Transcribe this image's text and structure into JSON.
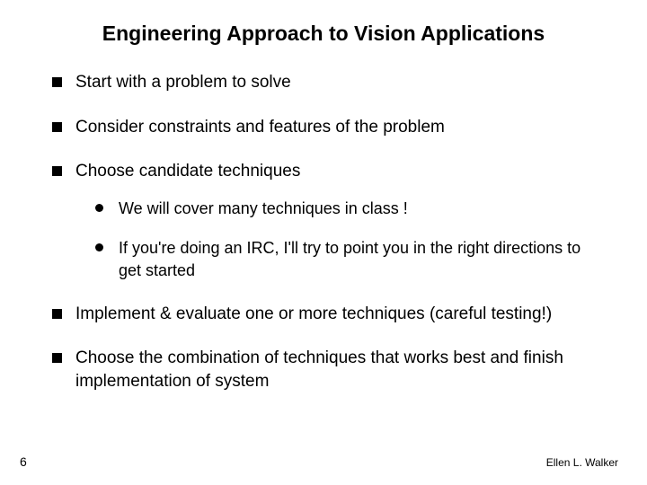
{
  "title": "Engineering Approach to Vision Applications",
  "bullets": [
    {
      "text": "Start with a problem to solve"
    },
    {
      "text": "Consider constraints and features of the problem"
    },
    {
      "text": "Choose candidate techniques",
      "sub": [
        "We will cover many techniques in class !",
        "If you're doing an IRC, I'll try to point you in the right directions to get started"
      ]
    },
    {
      "text": "Implement & evaluate one or more techniques (careful testing!)"
    },
    {
      "text": "Choose the combination of techniques that works best and finish implementation of system"
    }
  ],
  "pageNumber": "6",
  "author": "Ellen L. Walker",
  "colors": {
    "background": "#ffffff",
    "text": "#000000",
    "bullet": "#000000"
  },
  "fontSizes": {
    "title": 23,
    "body": 19,
    "sub": 18,
    "pageNumber": 14,
    "author": 12
  }
}
